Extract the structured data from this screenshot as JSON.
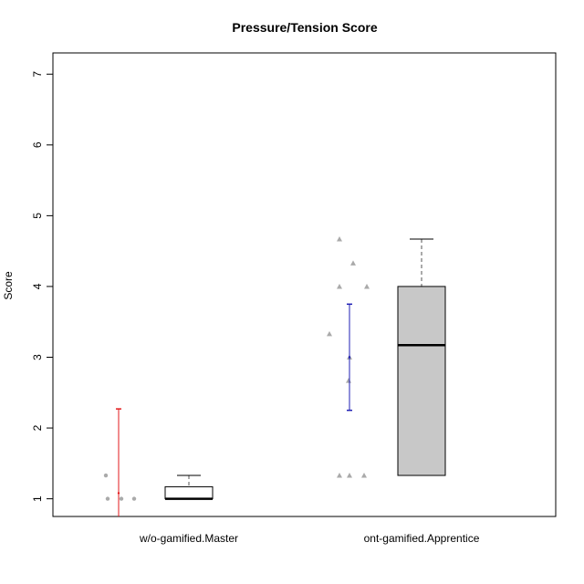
{
  "chart_data": {
    "type": "box",
    "title": "Pressure/Tension Score",
    "xlabel": "",
    "ylabel": "Score",
    "ylim": [
      0.75,
      7.3
    ],
    "yticks": [
      1,
      2,
      3,
      4,
      5,
      6,
      7
    ],
    "categories": [
      "w/o-gamified.Master",
      "ont-gamified.Apprentice"
    ],
    "box_fill": [
      "#ffffff",
      "#c8c8c8"
    ],
    "series": [
      {
        "points": [
          1.33,
          1.0,
          1.0,
          1.0
        ],
        "point_marker": "circle",
        "point_color": "#aaaaaa",
        "error_bar": {
          "mean": 1.08,
          "lower": 0.5,
          "upper": 2.27,
          "color": "#e31a1c"
        },
        "box": {
          "min": 1.0,
          "q1": 1.0,
          "median": 1.0,
          "q3": 1.17,
          "max": 1.33
        }
      },
      {
        "points": [
          4.67,
          4.33,
          4.0,
          4.0,
          3.33,
          3.0,
          2.67,
          1.33,
          1.33,
          1.33
        ],
        "point_marker": "triangle",
        "point_color": "#aaaaaa",
        "error_bar": {
          "mean": 3.0,
          "lower": 2.25,
          "upper": 3.75,
          "color": "#1f1fb4"
        },
        "box": {
          "min": 1.33,
          "q1": 1.33,
          "median": 3.17,
          "q3": 4.0,
          "max": 4.67
        }
      }
    ]
  }
}
